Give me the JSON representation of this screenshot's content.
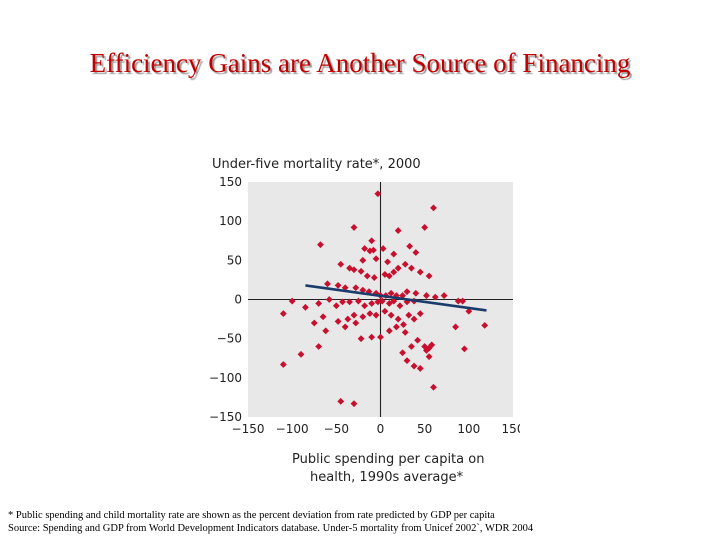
{
  "slide": {
    "title": "Efficiency Gains are Another Source of Financing"
  },
  "footnotes": {
    "note": "* Public spending and child mortality rate are shown as the percent deviation from rate predicted by GDP per capita",
    "source": "Source: Spending and GDP from World Development Indicators database. Under-5 mortality from Unicef 2002`, WDR 2004"
  },
  "colors": {
    "background": "#ffffff",
    "plot_area": "#e8e8e8",
    "marker": "#c8102e",
    "trend_line": "#1b3c6b",
    "title": "#c00000"
  },
  "chart_data": {
    "type": "scatter",
    "title": "Under-five mortality rate*, 2000",
    "xlabel_lines": [
      "Public spending per capita on",
      "health, 1990s average*"
    ],
    "xlim": [
      -150,
      150
    ],
    "ylim": [
      -150,
      150
    ],
    "xticks": [
      -150,
      -100,
      -50,
      0,
      50,
      100,
      150
    ],
    "yticks": [
      150,
      100,
      50,
      0,
      -50,
      -100,
      -150
    ],
    "tick_labels_x": [
      "−150",
      "−100",
      "−50",
      "0",
      "50",
      "100",
      "150"
    ],
    "tick_labels_y": [
      "150",
      "100",
      "50",
      "0",
      "−50",
      "−100",
      "−150"
    ],
    "grid": false,
    "trend_line": {
      "x": [
        -85,
        120
      ],
      "y": [
        18,
        -14
      ]
    },
    "points": [
      [
        -3,
        135
      ],
      [
        -30,
        92
      ],
      [
        60,
        117
      ],
      [
        -68,
        70
      ],
      [
        -18,
        65
      ],
      [
        -12,
        62
      ],
      [
        -8,
        63
      ],
      [
        3,
        65
      ],
      [
        15,
        58
      ],
      [
        20,
        88
      ],
      [
        33,
        68
      ],
      [
        40,
        60
      ],
      [
        50,
        92
      ],
      [
        -10,
        75
      ],
      [
        -20,
        50
      ],
      [
        -5,
        52
      ],
      [
        8,
        48
      ],
      [
        -45,
        45
      ],
      [
        -35,
        40
      ],
      [
        -30,
        38
      ],
      [
        -22,
        36
      ],
      [
        -15,
        30
      ],
      [
        -7,
        28
      ],
      [
        5,
        32
      ],
      [
        10,
        30
      ],
      [
        15,
        35
      ],
      [
        20,
        40
      ],
      [
        28,
        45
      ],
      [
        35,
        40
      ],
      [
        45,
        35
      ],
      [
        55,
        30
      ],
      [
        -60,
        20
      ],
      [
        -48,
        18
      ],
      [
        -40,
        15
      ],
      [
        -28,
        15
      ],
      [
        -20,
        12
      ],
      [
        -13,
        10
      ],
      [
        -5,
        8
      ],
      [
        0,
        5
      ],
      [
        6,
        5
      ],
      [
        12,
        8
      ],
      [
        18,
        5
      ],
      [
        25,
        5
      ],
      [
        30,
        10
      ],
      [
        40,
        8
      ],
      [
        52,
        5
      ],
      [
        62,
        3
      ],
      [
        72,
        5
      ],
      [
        88,
        -2
      ],
      [
        93,
        -2
      ],
      [
        -100,
        -2
      ],
      [
        -85,
        -10
      ],
      [
        -70,
        -5
      ],
      [
        -58,
        0
      ],
      [
        -50,
        -8
      ],
      [
        -43,
        -3
      ],
      [
        -35,
        -3
      ],
      [
        -25,
        -2
      ],
      [
        -18,
        -8
      ],
      [
        -10,
        -5
      ],
      [
        -3,
        -3
      ],
      [
        2,
        -2
      ],
      [
        10,
        -5
      ],
      [
        15,
        -2
      ],
      [
        22,
        -8
      ],
      [
        30,
        -3
      ],
      [
        38,
        -2
      ],
      [
        100,
        -15
      ],
      [
        -110,
        -18
      ],
      [
        -65,
        -22
      ],
      [
        -48,
        -28
      ],
      [
        -37,
        -25
      ],
      [
        -30,
        -20
      ],
      [
        -20,
        -22
      ],
      [
        -12,
        -18
      ],
      [
        -5,
        -20
      ],
      [
        5,
        -15
      ],
      [
        12,
        -20
      ],
      [
        20,
        -25
      ],
      [
        26,
        -32
      ],
      [
        32,
        -20
      ],
      [
        38,
        -25
      ],
      [
        45,
        -18
      ],
      [
        85,
        -35
      ],
      [
        118,
        -33
      ],
      [
        -75,
        -30
      ],
      [
        -62,
        -40
      ],
      [
        -40,
        -35
      ],
      [
        -28,
        -30
      ],
      [
        -22,
        -50
      ],
      [
        -10,
        -48
      ],
      [
        0,
        -48
      ],
      [
        10,
        -40
      ],
      [
        18,
        -35
      ],
      [
        28,
        -42
      ],
      [
        35,
        -60
      ],
      [
        42,
        -52
      ],
      [
        50,
        -60
      ],
      [
        52,
        -65
      ],
      [
        55,
        -62
      ],
      [
        58,
        -58
      ],
      [
        -70,
        -60
      ],
      [
        -90,
        -70
      ],
      [
        -110,
        -83
      ],
      [
        25,
        -68
      ],
      [
        30,
        -78
      ],
      [
        38,
        -85
      ],
      [
        45,
        -88
      ],
      [
        55,
        -73
      ],
      [
        95,
        -63
      ],
      [
        60,
        -112
      ],
      [
        -45,
        -130
      ],
      [
        -30,
        -133
      ]
    ]
  }
}
